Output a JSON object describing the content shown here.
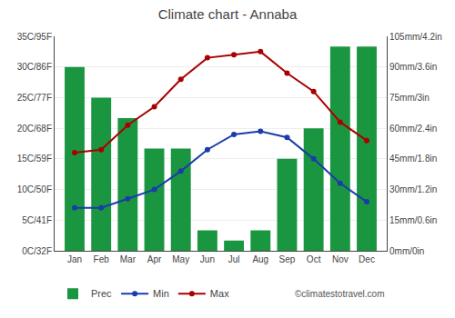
{
  "chart_data": {
    "type": "bar",
    "title": "Climate chart - Annaba",
    "categories": [
      "Jan",
      "Feb",
      "Mar",
      "Apr",
      "May",
      "Jun",
      "Jul",
      "Aug",
      "Sep",
      "Oct",
      "Nov",
      "Dec"
    ],
    "series": [
      {
        "name": "Prec",
        "type": "bar",
        "axis": "y2",
        "color": "#1a9641",
        "values": [
          90,
          75,
          65,
          50,
          50,
          10,
          5,
          10,
          45,
          60,
          100,
          100
        ]
      },
      {
        "name": "Min",
        "type": "line",
        "marker": "circle",
        "color": "#1a3caa",
        "values": [
          7,
          7,
          8.5,
          10,
          13,
          16.5,
          19,
          19.5,
          18.5,
          15,
          11,
          8
        ]
      },
      {
        "name": "Max",
        "type": "line",
        "marker": "circle",
        "color": "#aa0000",
        "values": [
          16,
          16.5,
          20.5,
          23.5,
          28,
          31.5,
          32,
          32.5,
          29,
          26,
          21,
          18
        ]
      }
    ],
    "ylim": [
      0,
      35
    ],
    "yticks": [
      {
        "value": 0,
        "label": "0C/32F"
      },
      {
        "value": 5,
        "label": "5C/41F"
      },
      {
        "value": 10,
        "label": "10C/50F"
      },
      {
        "value": 15,
        "label": "15C/59F"
      },
      {
        "value": 20,
        "label": "20C/68F"
      },
      {
        "value": 25,
        "label": "25C/77F"
      },
      {
        "value": 30,
        "label": "30C/86F"
      },
      {
        "value": 35,
        "label": "35C/95F"
      }
    ],
    "y2lim": [
      0,
      105
    ],
    "y2ticks": [
      {
        "value": 0,
        "label": "0mm/0in"
      },
      {
        "value": 15,
        "label": "15mm/0.6in"
      },
      {
        "value": 30,
        "label": "30mm/1.2in"
      },
      {
        "value": 45,
        "label": "45mm/1.8in"
      },
      {
        "value": 60,
        "label": "60mm/2.4in"
      },
      {
        "value": 75,
        "label": "75mm/3in"
      },
      {
        "value": 90,
        "label": "90mm/3.6in"
      },
      {
        "value": 105,
        "label": "105mm/4.2in"
      }
    ],
    "grid": true,
    "legend": "bottom",
    "annotations": [
      "©climatestotravel.com"
    ]
  }
}
